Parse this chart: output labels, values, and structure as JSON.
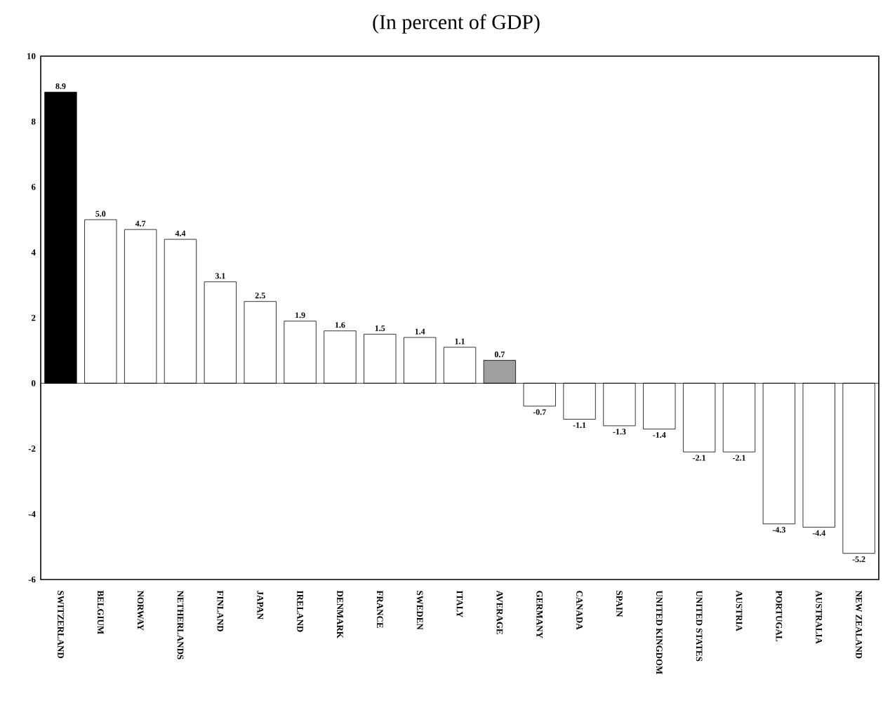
{
  "chart_data": {
    "type": "bar",
    "title": "(In percent of GDP)",
    "categories": [
      "SWITZERLAND",
      "BELGIUM",
      "NORWAY",
      "NETHERLANDS",
      "FINLAND",
      "JAPAN",
      "IRELAND",
      "DENMARK",
      "FRANCE",
      "SWEDEN",
      "ITALY",
      "AVERAGE",
      "GERMANY",
      "CANADA",
      "SPAIN",
      "UNITED KINGDOM",
      "UNITED STATES",
      "AUSTRIA",
      "PORTUGAL",
      "AUSTRALIA",
      "NEW ZEALAND"
    ],
    "values": [
      8.9,
      5.0,
      4.7,
      4.4,
      3.1,
      2.5,
      1.9,
      1.6,
      1.5,
      1.4,
      1.1,
      0.7,
      -0.7,
      -1.1,
      -1.3,
      -1.4,
      -2.1,
      -2.1,
      -4.3,
      -4.4,
      -5.2
    ],
    "value_labels": [
      "8.9",
      "5.0",
      "4.7",
      "4.4",
      "3.1",
      "2.5",
      "1.9",
      "1.6",
      "1.5",
      "1.4",
      "1.1",
      "0.7",
      "-0.7",
      "-1.1",
      "-1.3",
      "-1.4",
      "-2.1",
      "-2.1",
      "-4.3",
      "-4.4",
      "-5.2"
    ],
    "colors": [
      "#000000",
      "#ffffff",
      "#ffffff",
      "#ffffff",
      "#ffffff",
      "#ffffff",
      "#ffffff",
      "#ffffff",
      "#ffffff",
      "#ffffff",
      "#ffffff",
      "#a0a0a0",
      "#ffffff",
      "#ffffff",
      "#ffffff",
      "#ffffff",
      "#ffffff",
      "#ffffff",
      "#ffffff",
      "#ffffff",
      "#ffffff"
    ],
    "ylim": [
      -6,
      10
    ],
    "yticks": [
      -6,
      -4,
      -2,
      0,
      2,
      4,
      6,
      8,
      10
    ],
    "ref_lines": [
      {
        "axis": "y",
        "value": 0
      }
    ]
  }
}
